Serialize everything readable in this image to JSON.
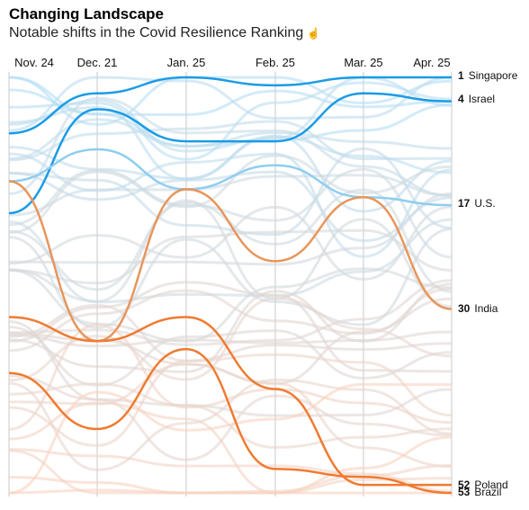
{
  "header": {
    "title": "Changing Landscape",
    "subtitle": "Notable shifts in the Covid Resilience Ranking",
    "subtitle_icon": "pointing-hand-icon"
  },
  "chart_data": {
    "type": "line",
    "chart_subtype": "bump",
    "categories": [
      "Nov. 24",
      "Dec. 21",
      "Jan. 25",
      "Feb. 25",
      "Mar. 25",
      "Apr. 25"
    ],
    "y_axis": "rank",
    "ylim": [
      1,
      53
    ],
    "y_inverted": true,
    "grid": "vertical lines at each category",
    "highlighted": [
      {
        "name": "Singapore",
        "values": [
          8,
          3,
          1,
          2,
          1,
          1
        ],
        "color": "#1a9be6"
      },
      {
        "name": "Israel",
        "values": [
          18,
          5,
          9,
          9,
          3,
          4
        ],
        "color": "#1a9be6"
      },
      {
        "name": "U.S.",
        "values": [
          14,
          10,
          15,
          12,
          16,
          17
        ],
        "color": "#8fcdf0"
      },
      {
        "name": "India",
        "values": [
          14,
          34,
          15,
          24,
          16,
          30
        ],
        "color": "#e8955a"
      },
      {
        "name": "Poland",
        "values": [
          31,
          34,
          31,
          40,
          52,
          52
        ],
        "color": "#f07a30"
      },
      {
        "name": "Brazil",
        "values": [
          38,
          45,
          35,
          50,
          51,
          53
        ],
        "color": "#f07a30"
      }
    ],
    "end_labels": [
      {
        "rank": "1",
        "name": "Singapore"
      },
      {
        "rank": "4",
        "name": "Israel"
      },
      {
        "rank": "17",
        "name": "U.S."
      },
      {
        "rank": "30",
        "name": "India"
      },
      {
        "rank": "52",
        "name": "Poland"
      },
      {
        "rank": "53",
        "name": "Brazil"
      }
    ],
    "background_series_count": 47
  }
}
